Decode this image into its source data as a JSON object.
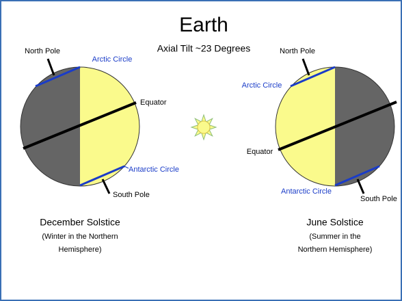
{
  "title": "Earth",
  "subtitle": "Axial Tilt ~23 Degrees",
  "left_globe": {
    "north_pole": "North Pole",
    "arctic_circle": "Arctic Circle",
    "equator": "Equator",
    "antarctic_circle": "Antarctic Circle",
    "south_pole": "South Pole",
    "caption": "December Solstice",
    "note": [
      "(Winter in the Northern",
      "Hemisphere)"
    ]
  },
  "right_globe": {
    "north_pole": "North Pole",
    "arctic_circle": "Arctic Circle",
    "equator": "Equator",
    "antarctic_circle": "Antarctic Circle",
    "south_pole": "South Pole",
    "caption": "June Solstice",
    "note": [
      "(Summer in the",
      "Northern Hemisphere)"
    ]
  }
}
